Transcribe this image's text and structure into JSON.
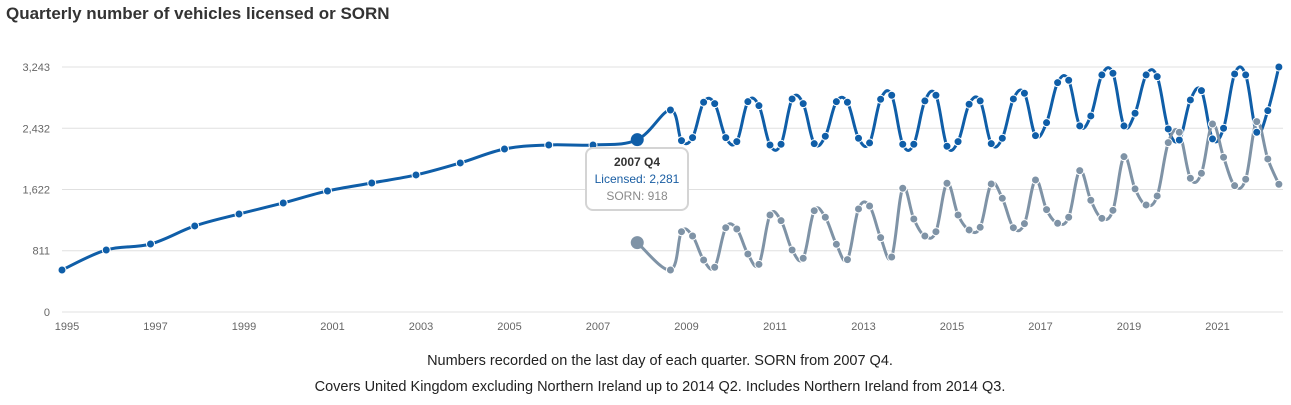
{
  "chart_data": {
    "type": "line",
    "title": "Quarterly number of vehicles licensed or SORN",
    "xlabel": "",
    "ylabel": "",
    "ylim": [
      0,
      3243
    ],
    "y_ticks": [
      "0",
      "811",
      "1,622",
      "2,432",
      "3,243"
    ],
    "y_tick_values": [
      0,
      811,
      1622,
      2432,
      3243
    ],
    "x_ticks": [
      "1995",
      "1997",
      "1999",
      "2001",
      "2003",
      "2005",
      "2007",
      "2009",
      "2011",
      "2013",
      "2015",
      "2017",
      "2019",
      "2021"
    ],
    "grid": true,
    "periods": [
      "1994 Q4",
      "1995 Q4",
      "1996 Q4",
      "1997 Q4",
      "1998 Q4",
      "1999 Q4",
      "2000 Q4",
      "2001 Q4",
      "2002 Q4",
      "2003 Q4",
      "2004 Q4",
      "2005 Q4",
      "2006 Q4",
      "2007 Q4",
      "2008 Q3",
      "2008 Q4",
      "2009 Q1",
      "2009 Q2",
      "2009 Q3",
      "2009 Q4",
      "2010 Q1",
      "2010 Q2",
      "2010 Q3",
      "2010 Q4",
      "2011 Q1",
      "2011 Q2",
      "2011 Q3",
      "2011 Q4",
      "2012 Q1",
      "2012 Q2",
      "2012 Q3",
      "2012 Q4",
      "2013 Q1",
      "2013 Q2",
      "2013 Q3",
      "2013 Q4",
      "2014 Q1",
      "2014 Q2",
      "2014 Q3",
      "2014 Q4",
      "2015 Q1",
      "2015 Q2",
      "2015 Q3",
      "2015 Q4",
      "2016 Q1",
      "2016 Q2",
      "2016 Q3",
      "2016 Q4",
      "2017 Q1",
      "2017 Q2",
      "2017 Q3",
      "2017 Q4",
      "2018 Q1",
      "2018 Q2",
      "2018 Q3",
      "2018 Q4",
      "2019 Q1",
      "2019 Q2",
      "2019 Q3",
      "2019 Q4",
      "2020 Q1",
      "2020 Q2",
      "2020 Q3",
      "2020 Q4",
      "2021 Q1",
      "2021 Q2",
      "2021 Q3",
      "2021 Q4",
      "2022 Q1",
      "2022 Q2"
    ],
    "series": [
      {
        "name": "Licensed",
        "color": "#0f5ea8",
        "values": [
          556,
          821,
          900,
          1139,
          1297,
          1443,
          1602,
          1708,
          1814,
          1973,
          2158,
          2211,
          2211,
          2281,
          2674,
          2268,
          2308,
          2776,
          2758,
          2308,
          2255,
          2784,
          2731,
          2211,
          2220,
          2820,
          2758,
          2228,
          2326,
          2784,
          2776,
          2300,
          2238,
          2816,
          2869,
          2220,
          2220,
          2794,
          2869,
          2194,
          2255,
          2750,
          2794,
          2228,
          2300,
          2820,
          2896,
          2334,
          2506,
          3036,
          3068,
          2463,
          2595,
          3138,
          3160,
          2463,
          2631,
          3138,
          3116,
          2423,
          2277,
          2807,
          2930,
          2291,
          2432,
          3151,
          3138,
          2379,
          2665,
          3243
        ]
      },
      {
        "name": "SORN",
        "color": "#7f93a6",
        "values": [
          null,
          null,
          null,
          null,
          null,
          null,
          null,
          null,
          null,
          null,
          null,
          null,
          null,
          918,
          556,
          1063,
          1006,
          688,
          592,
          1116,
          1099,
          768,
          631,
          1284,
          1209,
          821,
          711,
          1341,
          1254,
          896,
          693,
          1364,
          1403,
          984,
          728,
          1638,
          1231,
          1006,
          1063,
          1704,
          1284,
          1086,
          1121,
          1695,
          1505,
          1116,
          1169,
          1748,
          1355,
          1174,
          1254,
          1871,
          1479,
          1240,
          1346,
          2056,
          1629,
          1417,
          1536,
          2242,
          2379,
          1770,
          1836,
          2489,
          2048,
          1672,
          1757,
          2520,
          2026,
          1691
        ]
      }
    ],
    "highlighted_period": "2007 Q4",
    "tooltip": {
      "title": "2007 Q4",
      "licensed": "Licensed: 2,281",
      "sorn": "SORN: 918"
    }
  },
  "notes": [
    "Numbers recorded on the last day of each quarter. SORN from 2007 Q4.",
    "Covers United Kingdom excluding Northern Ireland up to 2014 Q2. Includes Northern Ireland from 2014 Q3."
  ]
}
